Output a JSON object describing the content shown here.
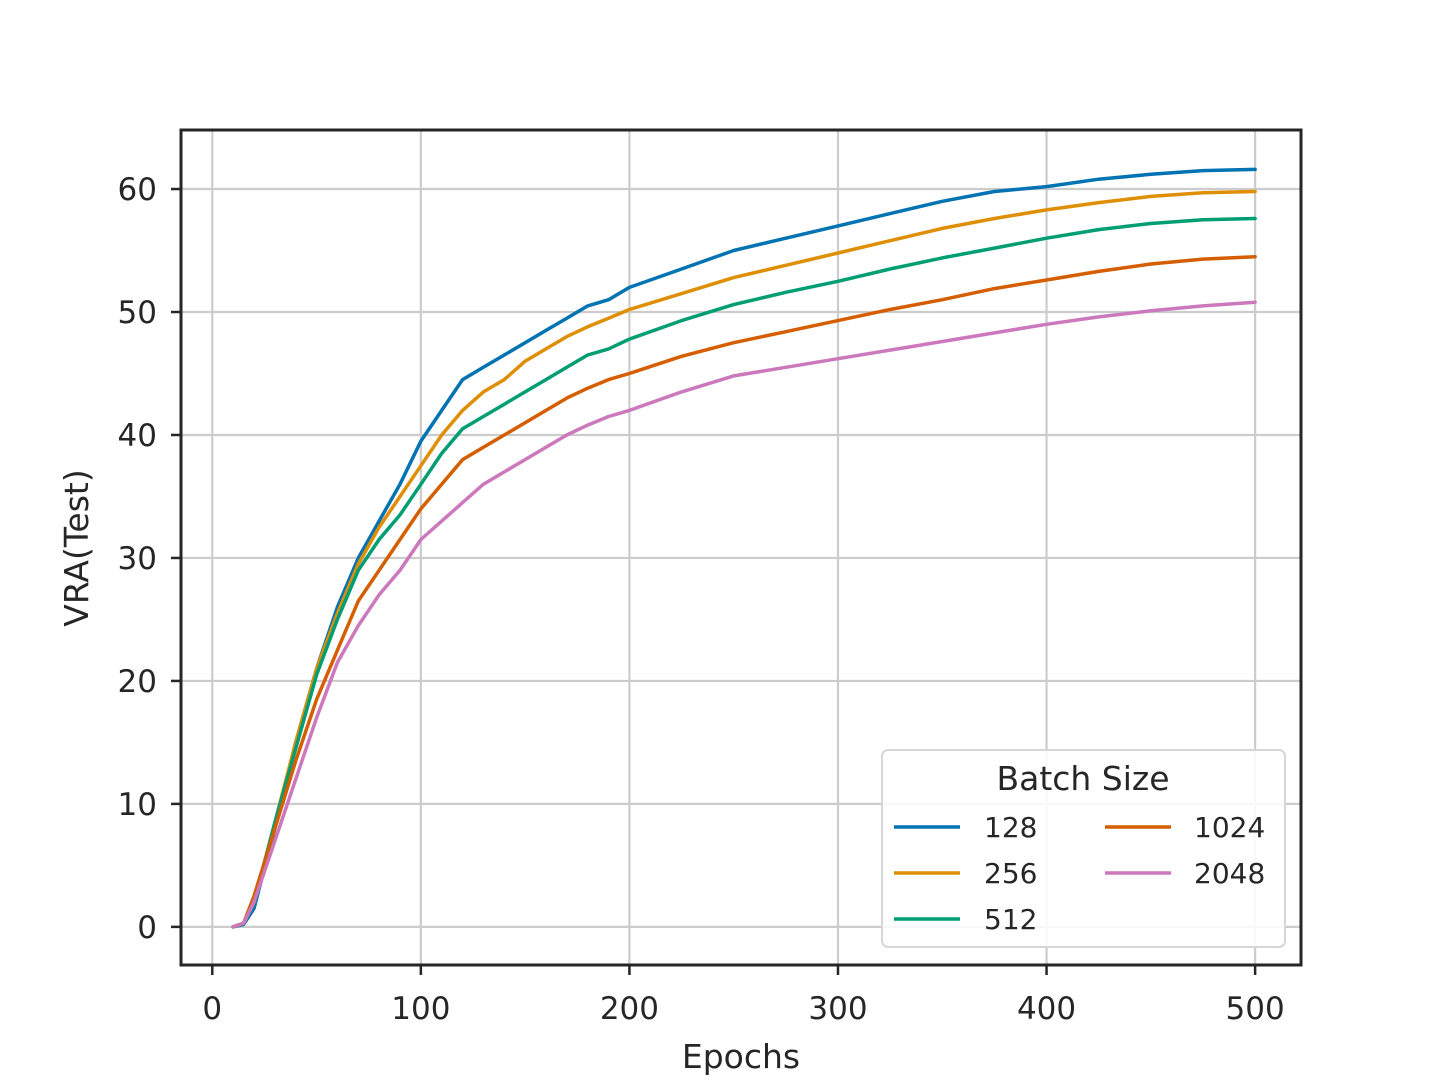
{
  "chart_data": {
    "type": "line",
    "xlabel": "Epochs",
    "ylabel": "VRA(Test)",
    "xlim": [
      -15,
      522
    ],
    "ylim": [
      -3.1,
      64.8
    ],
    "xticks": [
      0,
      100,
      200,
      300,
      400,
      500
    ],
    "yticks": [
      0,
      10,
      20,
      30,
      40,
      50,
      60
    ],
    "xtick_labels": [
      "0",
      "100",
      "200",
      "300",
      "400",
      "500"
    ],
    "ytick_labels": [
      "0",
      "10",
      "20",
      "30",
      "40",
      "50",
      "60"
    ],
    "grid": true,
    "legend": {
      "title": "Batch Size",
      "position": "lower-right",
      "columns": 2
    },
    "series": [
      {
        "name": "128",
        "color": "#0173b2",
        "x": [
          10,
          15,
          20,
          30,
          40,
          50,
          60,
          70,
          80,
          90,
          100,
          110,
          120,
          130,
          140,
          150,
          160,
          170,
          180,
          190,
          200,
          225,
          250,
          275,
          300,
          325,
          350,
          375,
          400,
          425,
          450,
          475,
          500
        ],
        "y": [
          0,
          0.2,
          1.5,
          8,
          15,
          21,
          26,
          30,
          33,
          36,
          39.5,
          42,
          44.5,
          45.5,
          46.5,
          47.5,
          48.5,
          49.5,
          50.5,
          51,
          52,
          53.5,
          55,
          56,
          57,
          58,
          59,
          59.8,
          60.2,
          60.8,
          61.2,
          61.5,
          61.6
        ]
      },
      {
        "name": "256",
        "color": "#de8f05",
        "x": [
          10,
          15,
          20,
          30,
          40,
          50,
          60,
          70,
          80,
          90,
          100,
          110,
          120,
          130,
          140,
          150,
          160,
          170,
          180,
          190,
          200,
          225,
          250,
          275,
          300,
          325,
          350,
          375,
          400,
          425,
          450,
          475,
          500
        ],
        "y": [
          0,
          0.3,
          2,
          8.5,
          15,
          21,
          25.5,
          29.5,
          32.5,
          35,
          37.5,
          40,
          42,
          43.5,
          44.5,
          46,
          47,
          48,
          48.8,
          49.5,
          50.2,
          51.5,
          52.8,
          53.8,
          54.8,
          55.8,
          56.8,
          57.6,
          58.3,
          58.9,
          59.4,
          59.7,
          59.8
        ]
      },
      {
        "name": "512",
        "color": "#029e73",
        "x": [
          10,
          15,
          20,
          30,
          40,
          50,
          60,
          70,
          80,
          90,
          100,
          110,
          120,
          130,
          140,
          150,
          160,
          170,
          180,
          190,
          200,
          225,
          250,
          275,
          300,
          325,
          350,
          375,
          400,
          425,
          450,
          475,
          500
        ],
        "y": [
          0,
          0.3,
          2,
          8.5,
          14.5,
          20.5,
          25,
          29,
          31.5,
          33.5,
          36,
          38.5,
          40.5,
          41.5,
          42.5,
          43.5,
          44.5,
          45.5,
          46.5,
          47,
          47.8,
          49.3,
          50.6,
          51.6,
          52.5,
          53.5,
          54.4,
          55.2,
          56,
          56.7,
          57.2,
          57.5,
          57.6
        ]
      },
      {
        "name": "1024",
        "color": "#d55e00",
        "x": [
          10,
          15,
          20,
          30,
          40,
          50,
          60,
          70,
          80,
          90,
          100,
          110,
          120,
          130,
          140,
          150,
          160,
          170,
          180,
          190,
          200,
          225,
          250,
          275,
          300,
          325,
          350,
          375,
          400,
          425,
          450,
          475,
          500
        ],
        "y": [
          0,
          0.3,
          2.5,
          8,
          13.5,
          18.5,
          22.5,
          26.5,
          29,
          31.5,
          34,
          36,
          38,
          39,
          40,
          41,
          42,
          43,
          43.8,
          44.5,
          45,
          46.4,
          47.5,
          48.4,
          49.3,
          50.2,
          51,
          51.9,
          52.6,
          53.3,
          53.9,
          54.3,
          54.5
        ]
      },
      {
        "name": "2048",
        "color": "#cc78bc",
        "x": [
          10,
          15,
          20,
          30,
          40,
          50,
          60,
          70,
          80,
          90,
          100,
          110,
          120,
          130,
          140,
          150,
          160,
          170,
          180,
          190,
          200,
          225,
          250,
          275,
          300,
          325,
          350,
          375,
          400,
          425,
          450,
          475,
          500
        ],
        "y": [
          0,
          0.3,
          2,
          7,
          12,
          17,
          21.5,
          24.5,
          27,
          29,
          31.5,
          33,
          34.5,
          36,
          37,
          38,
          39,
          40,
          40.8,
          41.5,
          42,
          43.5,
          44.8,
          45.5,
          46.2,
          46.9,
          47.6,
          48.3,
          49,
          49.6,
          50.1,
          50.5,
          50.8
        ]
      }
    ]
  }
}
